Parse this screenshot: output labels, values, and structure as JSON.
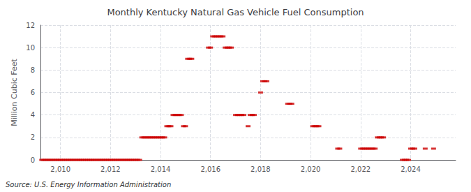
{
  "chart_data": {
    "type": "scatter",
    "title": "Monthly Kentucky Natural Gas Vehicle Fuel Consumption",
    "ylabel": "Million Cubic Feet",
    "source": "Source: U.S. Energy Information Administration",
    "color": "#cc0000",
    "marker": "dash",
    "grid": true,
    "xlim": [
      2009.2,
      2025.8
    ],
    "ylim": [
      0,
      12
    ],
    "xticks": [
      2010,
      2012,
      2014,
      2016,
      2018,
      2020,
      2022,
      2024
    ],
    "yticks": [
      0,
      2,
      4,
      6,
      8,
      10,
      12
    ],
    "x": [
      2009.25,
      2009.333,
      2009.417,
      2009.5,
      2009.583,
      2009.667,
      2009.75,
      2009.833,
      2009.917,
      2010.0,
      2010.083,
      2010.167,
      2010.25,
      2010.333,
      2010.417,
      2010.5,
      2010.583,
      2010.667,
      2010.75,
      2010.833,
      2010.917,
      2011.0,
      2011.083,
      2011.167,
      2011.25,
      2011.333,
      2011.417,
      2011.5,
      2011.583,
      2011.667,
      2011.75,
      2011.833,
      2011.917,
      2012.0,
      2012.083,
      2012.167,
      2012.25,
      2012.333,
      2012.417,
      2012.5,
      2012.583,
      2012.667,
      2012.75,
      2012.833,
      2012.917,
      2013.0,
      2013.083,
      2013.167,
      2013.25,
      2013.333,
      2013.417,
      2013.5,
      2013.583,
      2013.667,
      2013.75,
      2013.833,
      2013.917,
      2014.0,
      2014.083,
      2014.167,
      2014.25,
      2014.333,
      2014.417,
      2014.5,
      2014.583,
      2014.667,
      2014.75,
      2014.833,
      2014.917,
      2015.0,
      2015.083,
      2015.167,
      2015.25,
      2015.917,
      2016.0,
      2016.083,
      2016.167,
      2016.25,
      2016.333,
      2016.417,
      2016.5,
      2016.583,
      2016.667,
      2016.75,
      2016.833,
      2017.0,
      2017.083,
      2017.167,
      2017.25,
      2017.333,
      2017.5,
      2017.583,
      2017.667,
      2017.75,
      2018.0,
      2018.083,
      2018.167,
      2018.25,
      2019.083,
      2019.167,
      2019.25,
      2020.083,
      2020.167,
      2020.25,
      2020.333,
      2021.083,
      2021.167,
      2022.0,
      2022.083,
      2022.167,
      2022.25,
      2022.333,
      2022.417,
      2022.5,
      2022.583,
      2022.667,
      2022.75,
      2022.833,
      2022.917,
      2023.667,
      2023.75,
      2023.833,
      2023.917,
      2024.0,
      2024.083,
      2024.167,
      2024.583,
      2024.917
    ],
    "values": [
      0,
      0,
      0,
      0,
      0,
      0,
      0,
      0,
      0,
      0,
      0,
      0,
      0,
      0,
      0,
      0,
      0,
      0,
      0,
      0,
      0,
      0,
      0,
      0,
      0,
      0,
      0,
      0,
      0,
      0,
      0,
      0,
      0,
      0,
      0,
      0,
      0,
      0,
      0,
      0,
      0,
      0,
      0,
      0,
      0,
      0,
      0,
      0,
      2,
      2,
      2,
      2,
      2,
      2,
      2,
      2,
      2,
      2,
      2,
      2,
      3,
      3,
      3,
      4,
      4,
      4,
      4,
      4,
      3,
      3,
      9,
      9,
      9,
      10,
      10,
      11,
      11,
      11,
      11,
      11,
      11,
      10,
      10,
      10,
      10,
      4,
      4,
      4,
      4,
      4,
      3,
      4,
      4,
      4,
      6,
      7,
      7,
      7,
      5,
      5,
      5,
      3,
      3,
      3,
      3,
      1,
      1,
      1,
      1,
      1,
      1,
      1,
      1,
      1,
      1,
      2,
      2,
      2,
      2,
      0,
      0,
      0,
      0,
      1,
      1,
      1,
      1,
      1
    ]
  }
}
